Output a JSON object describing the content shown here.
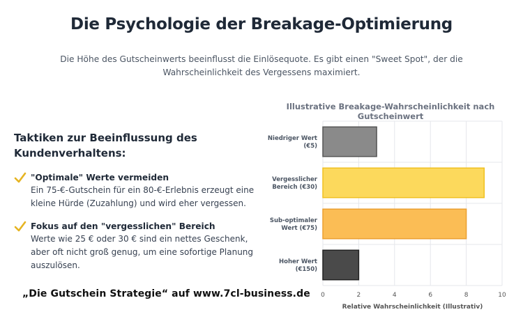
{
  "header": {
    "title": "Die Psychologie der Breakage-Optimierung",
    "subtitle": "Die Höhe des Gutscheinwerts beeinflusst die Einlösequote. Es gibt einen \"Sweet Spot\", der die Wahrscheinlichkeit des Vergessens maximiert."
  },
  "tactics": {
    "heading": "Taktiken zur Beeinflussung des Kundenverhaltens:",
    "items": [
      {
        "title": "\"Optimale\" Werte vermeiden",
        "text": "Ein 75-€-Gutschein für ein 80-€-Erlebnis erzeugt eine kleine Hürde (Zuzahlung) und wird eher vergessen."
      },
      {
        "title": "Fokus auf den \"vergesslichen\" Bereich",
        "text": "Werte wie 25 € oder 30 € sind ein nettes Geschenk, aber oft nicht groß genug, um eine sofortige Planung auszulösen."
      }
    ]
  },
  "promo": "„Die Gutschein Strategie“ auf www.7cl-business.de",
  "colors": {
    "check": "#e6b422",
    "title": "#1f2937"
  },
  "chart_data": {
    "type": "bar",
    "orientation": "horizontal",
    "title": "Illustrative Breakage-Wahrscheinlichkeit nach Gutscheinwert",
    "xlabel": "Relative Wahrscheinlichkeit (Illustrativ)",
    "ylabel": "",
    "xlim": [
      0,
      10
    ],
    "xticks": [
      0,
      2,
      4,
      6,
      8,
      10
    ],
    "grid": true,
    "categories": [
      [
        "Niedriger Wert",
        "(€5)"
      ],
      [
        "Vergesslicher",
        "Bereich (€30)"
      ],
      [
        "Sub-optimaler",
        "Wert (€75)"
      ],
      [
        "Hoher Wert",
        "(€150)"
      ]
    ],
    "values": [
      3,
      9,
      8,
      2
    ],
    "colors": [
      {
        "fill": "#8a8a8a",
        "stroke": "#555555"
      },
      {
        "fill": "#fcd95c",
        "stroke": "#f0c020"
      },
      {
        "fill": "#fbbd55",
        "stroke": "#eba030"
      },
      {
        "fill": "#4a4a4a",
        "stroke": "#222222"
      }
    ]
  }
}
